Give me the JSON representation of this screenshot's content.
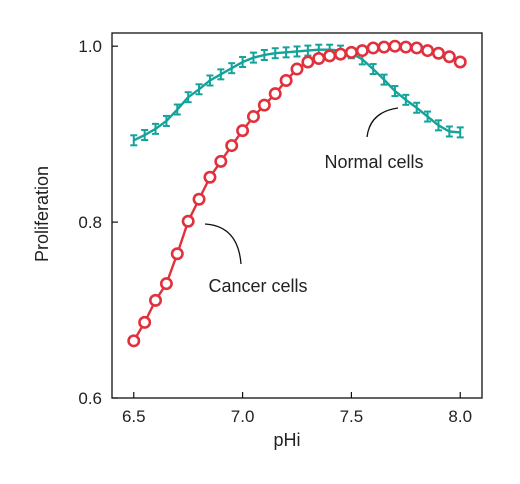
{
  "colors": {
    "cancer": "#e0313c",
    "normal": "#13a39a",
    "axis": "#111111"
  },
  "chart_data": {
    "type": "line",
    "xlabel": "pHi",
    "ylabel": "Proliferation",
    "xlim": [
      6.4,
      8.1
    ],
    "ylim": [
      0.6,
      1.015
    ],
    "xticks": [
      {
        "value": 6.5,
        "label": "6.5"
      },
      {
        "value": 7.0,
        "label": "7.0"
      },
      {
        "value": 7.5,
        "label": "7.5"
      },
      {
        "value": 8.0,
        "label": "8.0"
      }
    ],
    "yticks": [
      {
        "value": 0.6,
        "label": "0.6"
      },
      {
        "value": 0.8,
        "label": "0.8"
      },
      {
        "value": 1.0,
        "label": "1.0"
      }
    ],
    "grid": false,
    "series": [
      {
        "key": "cancer",
        "marker": "circle",
        "x": [
          6.5,
          6.55,
          6.6,
          6.65,
          6.7,
          6.75,
          6.8,
          6.85,
          6.9,
          6.95,
          7.0,
          7.05,
          7.1,
          7.15,
          7.2,
          7.25,
          7.3,
          7.35,
          7.4,
          7.45,
          7.5,
          7.55,
          7.6,
          7.65,
          7.7,
          7.75,
          7.8,
          7.85,
          7.9,
          7.95,
          8.0
        ],
        "y": [
          0.665,
          0.686,
          0.711,
          0.73,
          0.764,
          0.801,
          0.826,
          0.851,
          0.869,
          0.887,
          0.904,
          0.92,
          0.933,
          0.946,
          0.961,
          0.974,
          0.982,
          0.986,
          0.989,
          0.991,
          0.993,
          0.995,
          0.998,
          0.999,
          1.0,
          0.999,
          0.998,
          0.995,
          0.992,
          0.988,
          0.982
        ]
      },
      {
        "key": "normal",
        "marker": "errorbar",
        "x": [
          6.5,
          6.55,
          6.6,
          6.65,
          6.7,
          6.75,
          6.8,
          6.85,
          6.9,
          6.95,
          7.0,
          7.05,
          7.1,
          7.15,
          7.2,
          7.25,
          7.3,
          7.35,
          7.4,
          7.45,
          7.5,
          7.55,
          7.6,
          7.65,
          7.7,
          7.75,
          7.8,
          7.85,
          7.9,
          7.95,
          8.0
        ],
        "y": [
          0.893,
          0.899,
          0.906,
          0.915,
          0.928,
          0.942,
          0.951,
          0.961,
          0.968,
          0.975,
          0.982,
          0.987,
          0.99,
          0.992,
          0.993,
          0.994,
          0.995,
          0.996,
          0.996,
          0.995,
          0.992,
          0.985,
          0.974,
          0.962,
          0.949,
          0.939,
          0.93,
          0.92,
          0.91,
          0.903,
          0.902
        ]
      }
    ],
    "annotations": [
      {
        "key": "normal",
        "text": "Normal cells",
        "series": "normal"
      },
      {
        "key": "cancer",
        "text": "Cancer cells",
        "series": "cancer"
      }
    ]
  }
}
